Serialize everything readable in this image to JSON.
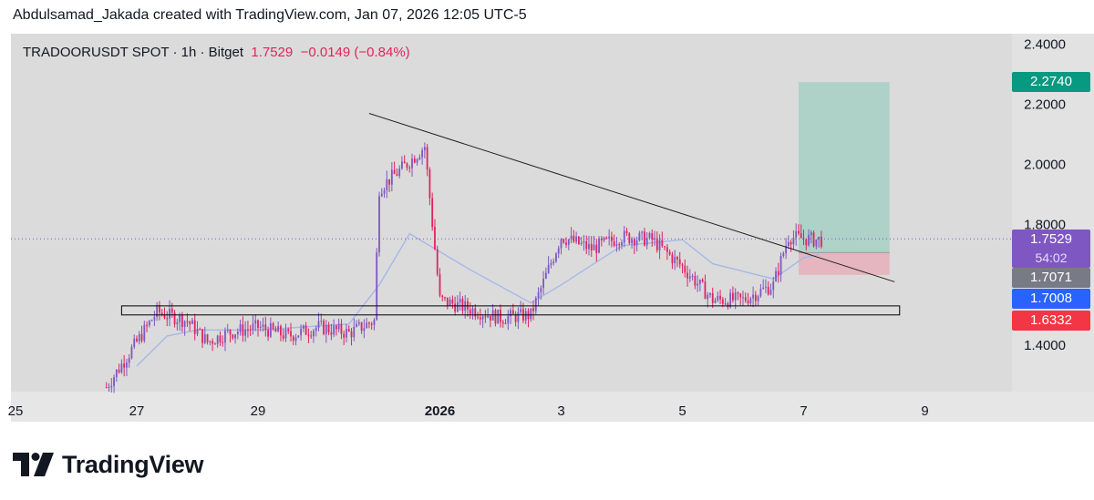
{
  "header": {
    "credit": "Abdulsamad_Jakada created with TradingView.com, Jan 07, 2026 12:05 UTC-5"
  },
  "symbol": {
    "name": "TRADOORUSDT SPOT · 1h · Bitget",
    "last": "1.7529",
    "change": "−0.0149 (−0.84%)"
  },
  "price_tags": {
    "take_profit": "2.2740",
    "last": "1.7529",
    "countdown": "54:02",
    "entry": "1.7071",
    "ma": "1.7008",
    "stop_loss": "1.6332"
  },
  "brand": {
    "name": "TradingView"
  },
  "colors": {
    "background": "#dbdbdb",
    "candle_up": "#7e57c2",
    "candle_down": "#e0245e",
    "moving_average": "#a6b8ea",
    "take_profit_zone": "#a6cfc4",
    "stop_loss_zone": "#e6b1bb",
    "trendline": "#222222"
  },
  "chart_data": {
    "type": "candlestick",
    "symbol": "TRADOORUSDT",
    "interval": "1h",
    "exchange": "Bitget",
    "y_ticks": [
      "2.4000",
      "2.2000",
      "2.0000",
      "1.8000",
      "1.4000"
    ],
    "ylim": [
      1.245,
      2.435
    ],
    "x_ticks": [
      "25",
      "27",
      "29",
      "2026",
      "3",
      "5",
      "7",
      "9"
    ],
    "price_path": [
      {
        "x": "Dec 26 12:00",
        "y": 1.26
      },
      {
        "x": "Dec 26 20:00",
        "y": 1.36
      },
      {
        "x": "Dec 27 04:00",
        "y": 1.46
      },
      {
        "x": "Dec 27 08:00",
        "y": 1.51
      },
      {
        "x": "Dec 27 20:00",
        "y": 1.48
      },
      {
        "x": "Dec 28 04:00",
        "y": 1.41
      },
      {
        "x": "Dec 28 12:00",
        "y": 1.44
      },
      {
        "x": "Dec 29 00:00",
        "y": 1.46
      },
      {
        "x": "Dec 29 12:00",
        "y": 1.43
      },
      {
        "x": "Dec 30 00:00",
        "y": 1.46
      },
      {
        "x": "Dec 30 12:00",
        "y": 1.44
      },
      {
        "x": "Dec 30 22:00",
        "y": 1.48
      },
      {
        "x": "Dec 31 00:00",
        "y": 1.92
      },
      {
        "x": "Dec 31 12:00",
        "y": 2.01
      },
      {
        "x": "Dec 31 18:00",
        "y": 2.06
      },
      {
        "x": "Jan 01 00:00",
        "y": 1.55
      },
      {
        "x": "Jan 01 12:00",
        "y": 1.52
      },
      {
        "x": "Jan 02 00:00",
        "y": 1.49
      },
      {
        "x": "Jan 02 12:00",
        "y": 1.5
      },
      {
        "x": "Jan 03 00:00",
        "y": 1.76
      },
      {
        "x": "Jan 03 12:00",
        "y": 1.72
      },
      {
        "x": "Jan 04 00:00",
        "y": 1.76
      },
      {
        "x": "Jan 04 12:00",
        "y": 1.75
      },
      {
        "x": "Jan 05 00:00",
        "y": 1.66
      },
      {
        "x": "Jan 05 12:00",
        "y": 1.55
      },
      {
        "x": "Jan 06 00:00",
        "y": 1.55
      },
      {
        "x": "Jan 06 12:00",
        "y": 1.6
      },
      {
        "x": "Jan 06 18:00",
        "y": 1.76
      },
      {
        "x": "Jan 07 04:00",
        "y": 1.75
      }
    ],
    "moving_average_path": [
      {
        "x": "Dec 27 00:00",
        "y": 1.33
      },
      {
        "x": "Dec 27 12:00",
        "y": 1.43
      },
      {
        "x": "Dec 28 00:00",
        "y": 1.45
      },
      {
        "x": "Dec 29 00:00",
        "y": 1.45
      },
      {
        "x": "Dec 30 12:00",
        "y": 1.47
      },
      {
        "x": "Dec 31 00:00",
        "y": 1.6
      },
      {
        "x": "Dec 31 12:00",
        "y": 1.77
      },
      {
        "x": "Jan 01 00:00",
        "y": 1.71
      },
      {
        "x": "Jan 01 12:00",
        "y": 1.65
      },
      {
        "x": "Jan 02 12:00",
        "y": 1.54
      },
      {
        "x": "Jan 03 00:00",
        "y": 1.6
      },
      {
        "x": "Jan 04 00:00",
        "y": 1.73
      },
      {
        "x": "Jan 05 00:00",
        "y": 1.75
      },
      {
        "x": "Jan 05 12:00",
        "y": 1.67
      },
      {
        "x": "Jan 06 12:00",
        "y": 1.62
      },
      {
        "x": "Jan 07 00:00",
        "y": 1.69
      },
      {
        "x": "Jan 07 06:00",
        "y": 1.7
      }
    ],
    "annotations": {
      "trendline": {
        "from": {
          "x": "Dec 30 20:00",
          "y": 2.17
        },
        "to": {
          "x": "Jan 08 12:00",
          "y": 1.61
        }
      },
      "support_box": {
        "x_from": "Dec 26 18:00",
        "x_to": "Jan 08 14:00",
        "y_from": 1.5,
        "y_to": 1.53
      },
      "position": {
        "x_from": "Jan 06 22:00",
        "x_to": "Jan 08 10:00",
        "entry": 1.7071,
        "take_profit": 2.274,
        "stop_loss": 1.6332
      },
      "last_price_line": 1.7529
    },
    "grid": false,
    "legend": "none"
  }
}
